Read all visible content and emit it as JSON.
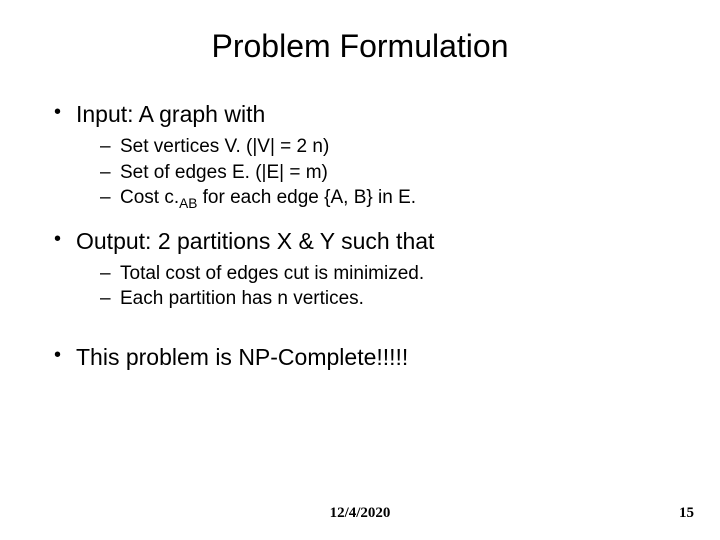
{
  "title": "Problem Formulation",
  "bullets": {
    "input": {
      "label": "Input: A graph with",
      "items": [
        "Set vertices V. (|V| = 2 n)",
        "Set of edges E. (|E| = m)"
      ],
      "cost_prefix": "Cost c.",
      "cost_sub": "AB",
      "cost_suffix": " for each edge {A, B} in E."
    },
    "output": {
      "label": "Output: 2 partitions X & Y such that",
      "items": [
        "Total cost of edges cut is minimized.",
        "Each partition has n vertices."
      ]
    },
    "np": {
      "label": "This problem is NP-Complete!!!!!"
    }
  },
  "footer": {
    "date": "12/4/2020",
    "page": "15"
  }
}
